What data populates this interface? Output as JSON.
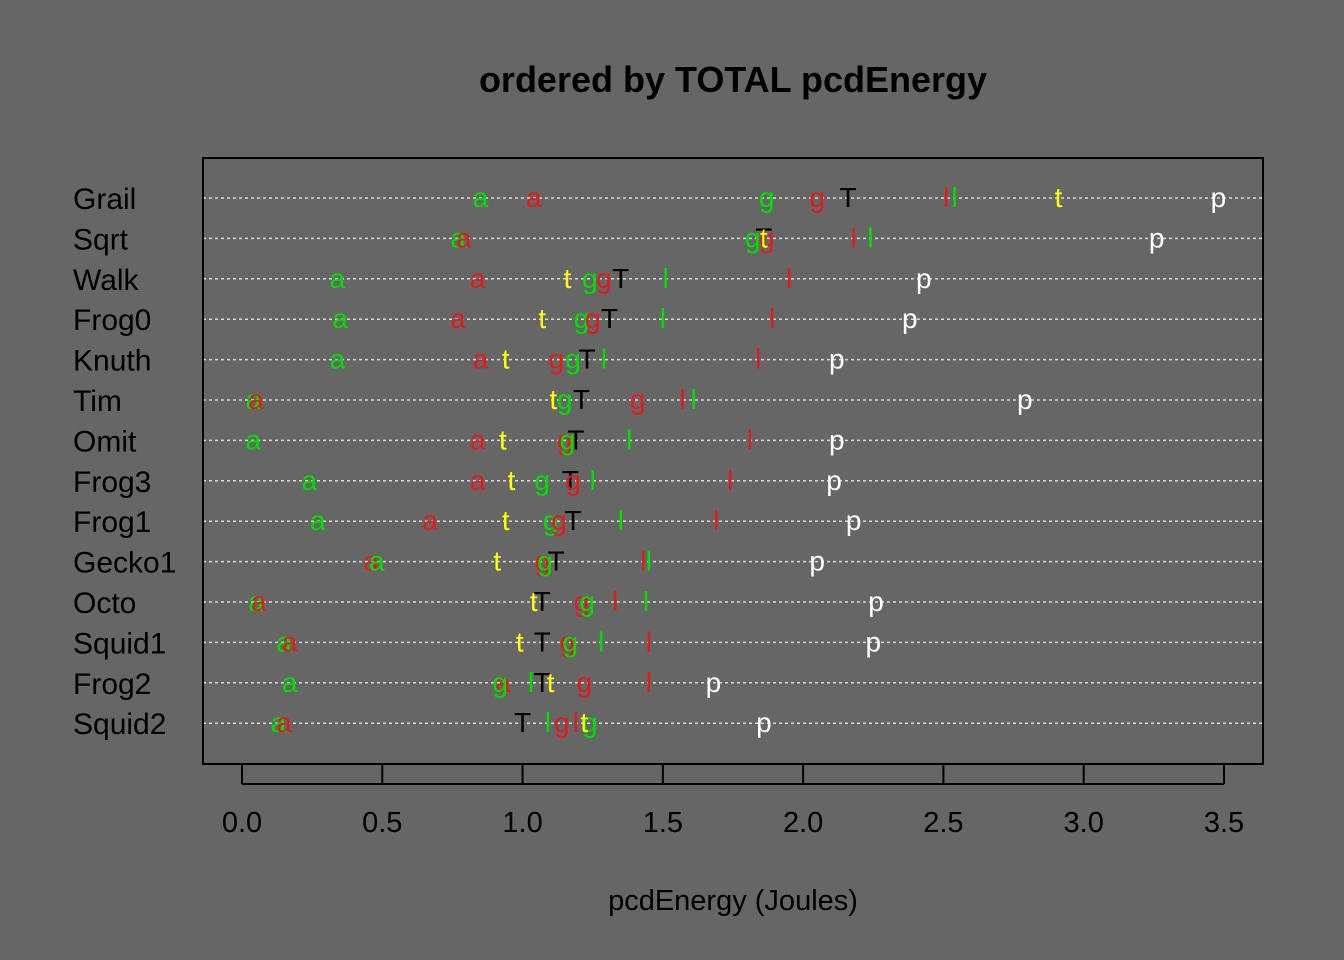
{
  "chart_data": {
    "type": "dotplot",
    "title": "ordered by TOTAL pcdEnergy",
    "xlabel": "pcdEnergy (Joules)",
    "xlim": [
      -0.14,
      3.5
    ],
    "x_ticks": [
      "0.0",
      "0.5",
      "1.0",
      "1.5",
      "2.0",
      "2.5",
      "3.0",
      "3.5"
    ],
    "grid": "horizontal dotted",
    "background": "#666666",
    "colors": {
      "red": "#E31A1C",
      "green": "#00E000",
      "yellow": "#FFFF00",
      "black": "#000000",
      "white": "#FFFFFF"
    },
    "categories": [
      "Grail",
      "Sqrt",
      "Walk",
      "Frog0",
      "Knuth",
      "Tim",
      "Omit",
      "Frog3",
      "Frog1",
      "Gecko1",
      "Octo",
      "Squid1",
      "Frog2",
      "Squid2"
    ],
    "rows": [
      {
        "name": "Grail",
        "points": [
          {
            "label": "a",
            "color": "green",
            "x": 0.85
          },
          {
            "label": "a",
            "color": "red",
            "x": 1.04
          },
          {
            "label": "g",
            "color": "green",
            "x": 1.87
          },
          {
            "label": "g",
            "color": "red",
            "x": 2.05
          },
          {
            "label": "T",
            "color": "black",
            "x": 2.16
          },
          {
            "label": "l",
            "color": "red",
            "x": 2.51
          },
          {
            "label": "l",
            "color": "green",
            "x": 2.54
          },
          {
            "label": "t",
            "color": "yellow",
            "x": 2.91
          },
          {
            "label": "p",
            "color": "white",
            "x": 3.48
          }
        ]
      },
      {
        "name": "Sqrt",
        "points": [
          {
            "label": "a",
            "color": "green",
            "x": 0.77
          },
          {
            "label": "a",
            "color": "red",
            "x": 0.79
          },
          {
            "label": "g",
            "color": "green",
            "x": 1.82
          },
          {
            "label": "g",
            "color": "red",
            "x": 1.87
          },
          {
            "label": "T",
            "color": "black",
            "x": 1.86
          },
          {
            "label": "t",
            "color": "yellow",
            "x": 1.86
          },
          {
            "label": "l",
            "color": "red",
            "x": 2.18
          },
          {
            "label": "l",
            "color": "green",
            "x": 2.24
          },
          {
            "label": "p",
            "color": "white",
            "x": 3.26
          }
        ]
      },
      {
        "name": "Walk",
        "points": [
          {
            "label": "a",
            "color": "green",
            "x": 0.34
          },
          {
            "label": "a",
            "color": "red",
            "x": 0.84
          },
          {
            "label": "t",
            "color": "yellow",
            "x": 1.16
          },
          {
            "label": "g",
            "color": "green",
            "x": 1.24
          },
          {
            "label": "g",
            "color": "red",
            "x": 1.29
          },
          {
            "label": "T",
            "color": "black",
            "x": 1.35
          },
          {
            "label": "l",
            "color": "green",
            "x": 1.51
          },
          {
            "label": "l",
            "color": "red",
            "x": 1.95
          },
          {
            "label": "p",
            "color": "white",
            "x": 2.43
          }
        ]
      },
      {
        "name": "Frog0",
        "points": [
          {
            "label": "a",
            "color": "green",
            "x": 0.35
          },
          {
            "label": "a",
            "color": "red",
            "x": 0.77
          },
          {
            "label": "t",
            "color": "yellow",
            "x": 1.07
          },
          {
            "label": "g",
            "color": "green",
            "x": 1.21
          },
          {
            "label": "g",
            "color": "red",
            "x": 1.25
          },
          {
            "label": "T",
            "color": "black",
            "x": 1.31
          },
          {
            "label": "l",
            "color": "green",
            "x": 1.5
          },
          {
            "label": "l",
            "color": "red",
            "x": 1.89
          },
          {
            "label": "p",
            "color": "white",
            "x": 2.38
          }
        ]
      },
      {
        "name": "Knuth",
        "points": [
          {
            "label": "a",
            "color": "green",
            "x": 0.34
          },
          {
            "label": "a",
            "color": "red",
            "x": 0.85
          },
          {
            "label": "t",
            "color": "yellow",
            "x": 0.94
          },
          {
            "label": "g",
            "color": "red",
            "x": 1.12
          },
          {
            "label": "g",
            "color": "green",
            "x": 1.18
          },
          {
            "label": "T",
            "color": "black",
            "x": 1.23
          },
          {
            "label": "l",
            "color": "green",
            "x": 1.29
          },
          {
            "label": "l",
            "color": "red",
            "x": 1.84
          },
          {
            "label": "p",
            "color": "white",
            "x": 2.12
          }
        ]
      },
      {
        "name": "Tim",
        "points": [
          {
            "label": "a",
            "color": "green",
            "x": 0.04
          },
          {
            "label": "a",
            "color": "red",
            "x": 0.05
          },
          {
            "label": "t",
            "color": "yellow",
            "x": 1.11
          },
          {
            "label": "g",
            "color": "green",
            "x": 1.15
          },
          {
            "label": "T",
            "color": "black",
            "x": 1.21
          },
          {
            "label": "g",
            "color": "red",
            "x": 1.41
          },
          {
            "label": "l",
            "color": "red",
            "x": 1.57
          },
          {
            "label": "l",
            "color": "green",
            "x": 1.61
          },
          {
            "label": "p",
            "color": "white",
            "x": 2.79
          }
        ]
      },
      {
        "name": "Omit",
        "points": [
          {
            "label": "a",
            "color": "green",
            "x": 0.04
          },
          {
            "label": "a",
            "color": "red",
            "x": 0.84
          },
          {
            "label": "t",
            "color": "yellow",
            "x": 0.93
          },
          {
            "label": "T",
            "color": "black",
            "x": 1.19
          },
          {
            "label": "g",
            "color": "red",
            "x": 1.15
          },
          {
            "label": "g",
            "color": "green",
            "x": 1.16
          },
          {
            "label": "l",
            "color": "green",
            "x": 1.38
          },
          {
            "label": "l",
            "color": "red",
            "x": 1.81
          },
          {
            "label": "p",
            "color": "white",
            "x": 2.12
          }
        ]
      },
      {
        "name": "Frog3",
        "points": [
          {
            "label": "a",
            "color": "green",
            "x": 0.24
          },
          {
            "label": "a",
            "color": "red",
            "x": 0.84
          },
          {
            "label": "t",
            "color": "yellow",
            "x": 0.96
          },
          {
            "label": "g",
            "color": "green",
            "x": 1.07
          },
          {
            "label": "T",
            "color": "black",
            "x": 1.17
          },
          {
            "label": "g",
            "color": "red",
            "x": 1.18
          },
          {
            "label": "l",
            "color": "green",
            "x": 1.25
          },
          {
            "label": "l",
            "color": "red",
            "x": 1.74
          },
          {
            "label": "p",
            "color": "white",
            "x": 2.11
          }
        ]
      },
      {
        "name": "Frog1",
        "points": [
          {
            "label": "a",
            "color": "green",
            "x": 0.27
          },
          {
            "label": "a",
            "color": "red",
            "x": 0.67
          },
          {
            "label": "t",
            "color": "yellow",
            "x": 0.94
          },
          {
            "label": "g",
            "color": "green",
            "x": 1.1
          },
          {
            "label": "g",
            "color": "red",
            "x": 1.13
          },
          {
            "label": "T",
            "color": "black",
            "x": 1.18
          },
          {
            "label": "l",
            "color": "green",
            "x": 1.35
          },
          {
            "label": "l",
            "color": "red",
            "x": 1.69
          },
          {
            "label": "p",
            "color": "white",
            "x": 2.18
          }
        ]
      },
      {
        "name": "Gecko1",
        "points": [
          {
            "label": "a",
            "color": "red",
            "x": 0.46
          },
          {
            "label": "a",
            "color": "green",
            "x": 0.48
          },
          {
            "label": "t",
            "color": "yellow",
            "x": 0.91
          },
          {
            "label": "g",
            "color": "red",
            "x": 1.07
          },
          {
            "label": "g",
            "color": "green",
            "x": 1.08
          },
          {
            "label": "T",
            "color": "black",
            "x": 1.12
          },
          {
            "label": "l",
            "color": "red",
            "x": 1.43
          },
          {
            "label": "l",
            "color": "green",
            "x": 1.45
          },
          {
            "label": "p",
            "color": "white",
            "x": 2.05
          }
        ]
      },
      {
        "name": "Octo",
        "points": [
          {
            "label": "a",
            "color": "green",
            "x": 0.05
          },
          {
            "label": "a",
            "color": "red",
            "x": 0.06
          },
          {
            "label": "t",
            "color": "yellow",
            "x": 1.04
          },
          {
            "label": "T",
            "color": "black",
            "x": 1.07
          },
          {
            "label": "g",
            "color": "red",
            "x": 1.21
          },
          {
            "label": "g",
            "color": "green",
            "x": 1.23
          },
          {
            "label": "l",
            "color": "red",
            "x": 1.33
          },
          {
            "label": "l",
            "color": "green",
            "x": 1.44
          },
          {
            "label": "p",
            "color": "white",
            "x": 2.26
          }
        ]
      },
      {
        "name": "Squid1",
        "points": [
          {
            "label": "a",
            "color": "green",
            "x": 0.15
          },
          {
            "label": "a",
            "color": "red",
            "x": 0.17
          },
          {
            "label": "t",
            "color": "yellow",
            "x": 0.99
          },
          {
            "label": "T",
            "color": "black",
            "x": 1.07
          },
          {
            "label": "g",
            "color": "red",
            "x": 1.16
          },
          {
            "label": "g",
            "color": "green",
            "x": 1.17
          },
          {
            "label": "l",
            "color": "green",
            "x": 1.28
          },
          {
            "label": "l",
            "color": "red",
            "x": 1.45
          },
          {
            "label": "p",
            "color": "white",
            "x": 2.25
          }
        ]
      },
      {
        "name": "Frog2",
        "points": [
          {
            "label": "a",
            "color": "green",
            "x": 0.17
          },
          {
            "label": "a",
            "color": "red",
            "x": 0.93
          },
          {
            "label": "g",
            "color": "green",
            "x": 0.92
          },
          {
            "label": "l",
            "color": "green",
            "x": 1.03
          },
          {
            "label": "T",
            "color": "black",
            "x": 1.07
          },
          {
            "label": "t",
            "color": "yellow",
            "x": 1.1
          },
          {
            "label": "g",
            "color": "red",
            "x": 1.22
          },
          {
            "label": "l",
            "color": "red",
            "x": 1.45
          },
          {
            "label": "p",
            "color": "white",
            "x": 1.68
          }
        ]
      },
      {
        "name": "Squid2",
        "points": [
          {
            "label": "a",
            "color": "green",
            "x": 0.13
          },
          {
            "label": "a",
            "color": "red",
            "x": 0.15
          },
          {
            "label": "T",
            "color": "black",
            "x": 1.0
          },
          {
            "label": "l",
            "color": "green",
            "x": 1.09
          },
          {
            "label": "g",
            "color": "red",
            "x": 1.14
          },
          {
            "label": "l",
            "color": "red",
            "x": 1.19
          },
          {
            "label": "g",
            "color": "green",
            "x": 1.24
          },
          {
            "label": "t",
            "color": "yellow",
            "x": 1.22
          },
          {
            "label": "p",
            "color": "white",
            "x": 1.86
          }
        ]
      }
    ]
  }
}
